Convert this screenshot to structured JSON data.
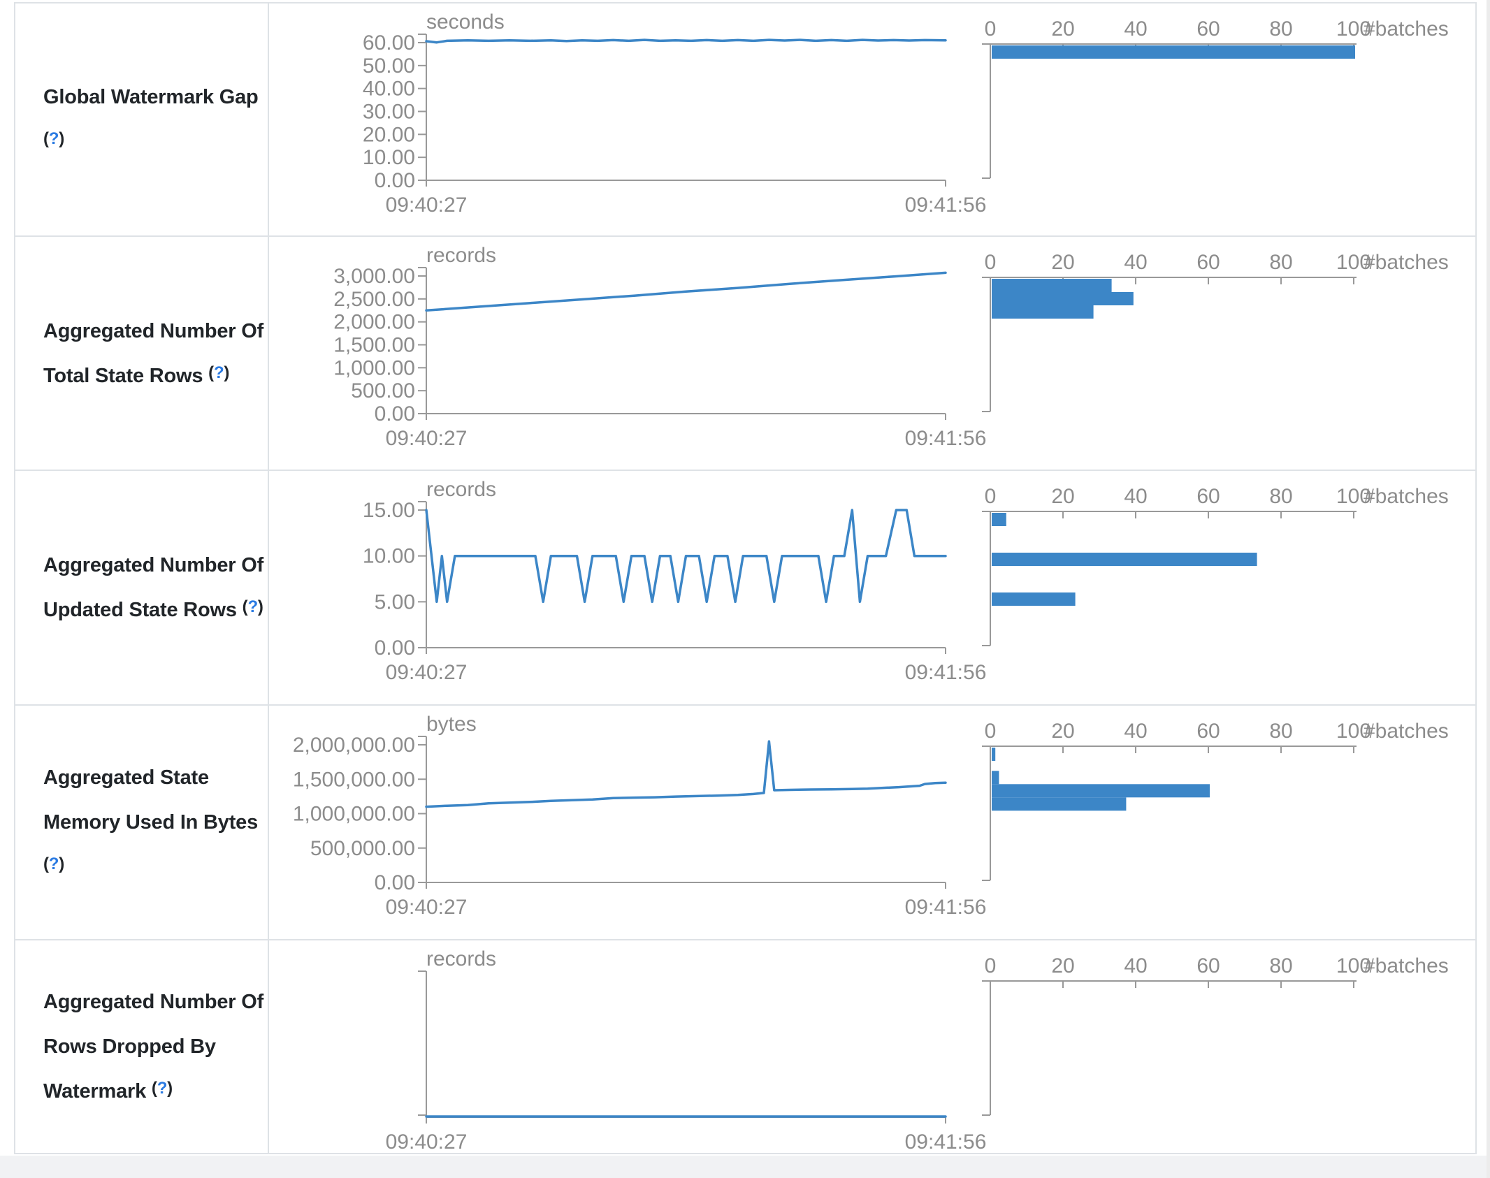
{
  "colors": {
    "accent_blue": "#3c86c7",
    "axis_gray": "#999999",
    "tick_text_gray": "#8c8c8c",
    "label_dark": "#212529",
    "help_blue": "#2a7ae2",
    "border_gray": "#dee2e6"
  },
  "histogram_header": {
    "tick_labels": [
      "0",
      "20",
      "40",
      "60",
      "80",
      "100"
    ],
    "tick_values": [
      0,
      20,
      40,
      60,
      80,
      100
    ],
    "axis_label": "#batches"
  },
  "time_axis": {
    "start": "09:40:27",
    "end": "09:41:56"
  },
  "help_marker": {
    "open": "(",
    "q": "?",
    "close": ")"
  },
  "rows": [
    {
      "name": "global-watermark-gap",
      "label_lines": [
        "Global Watermark Gap"
      ],
      "help_own_line": true,
      "chart_data": {
        "type": "line",
        "title": "Global Watermark Gap",
        "unit": "seconds",
        "ymax": 60,
        "y_tick_labels": [
          "60.00",
          "50.00",
          "40.00",
          "30.00",
          "20.00",
          "10.00",
          "0.00"
        ],
        "x_start": "09:40:27",
        "x_end": "09:41:56",
        "points": [
          [
            0,
            60.6
          ],
          [
            2,
            60.1
          ],
          [
            4,
            60.8
          ],
          [
            8,
            61
          ],
          [
            12,
            60.8
          ],
          [
            16,
            61
          ],
          [
            20,
            60.8
          ],
          [
            24,
            61
          ],
          [
            27,
            60.7
          ],
          [
            30,
            61
          ],
          [
            33,
            60.8
          ],
          [
            36,
            61.1
          ],
          [
            39,
            60.8
          ],
          [
            42,
            61.2
          ],
          [
            45,
            60.8
          ],
          [
            48,
            61
          ],
          [
            51,
            60.8
          ],
          [
            54,
            61.1
          ],
          [
            57,
            60.8
          ],
          [
            60,
            61.1
          ],
          [
            63,
            60.8
          ],
          [
            66,
            61.2
          ],
          [
            69,
            60.9
          ],
          [
            72,
            61.2
          ],
          [
            75,
            60.8
          ],
          [
            78,
            61.1
          ],
          [
            81,
            60.8
          ],
          [
            84,
            61.2
          ],
          [
            87,
            60.9
          ],
          [
            90,
            61.1
          ],
          [
            93,
            60.9
          ],
          [
            96,
            61.1
          ],
          [
            100,
            61
          ]
        ],
        "histogram_bars": [
          {
            "value": 60,
            "count": 100
          }
        ]
      }
    },
    {
      "name": "aggregated-number-of-total-state-rows",
      "label_lines": [
        "Aggregated Number Of",
        "Total State Rows"
      ],
      "help_own_line": false,
      "chart_data": {
        "type": "line",
        "title": "Aggregated Number Of Total State Rows",
        "unit": "records",
        "ymax": 3000,
        "y_tick_labels": [
          "3,000.00",
          "2,500.00",
          "2,000.00",
          "1,500.00",
          "1,000.00",
          "500.00",
          "0.00"
        ],
        "x_start": "09:40:27",
        "x_end": "09:41:56",
        "points": [
          [
            0,
            2250
          ],
          [
            10,
            2330
          ],
          [
            20,
            2410
          ],
          [
            30,
            2490
          ],
          [
            40,
            2570
          ],
          [
            50,
            2660
          ],
          [
            60,
            2740
          ],
          [
            70,
            2830
          ],
          [
            80,
            2910
          ],
          [
            90,
            2990
          ],
          [
            100,
            3070
          ]
        ],
        "histogram_bars": [
          {
            "value": 3000,
            "count": 33
          },
          {
            "value": 2700,
            "count": 39
          },
          {
            "value": 2400,
            "count": 28
          }
        ]
      }
    },
    {
      "name": "aggregated-number-of-updated-state-rows",
      "label_lines": [
        "Aggregated Number Of",
        "Updated State Rows"
      ],
      "help_own_line": false,
      "chart_data": {
        "type": "line",
        "title": "Aggregated Number Of Updated State Rows",
        "unit": "records",
        "ymax": 15,
        "y_tick_labels": [
          "15.00",
          "10.00",
          "5.00",
          "0.00"
        ],
        "x_start": "09:40:27",
        "x_end": "09:41:56",
        "points": [
          [
            0,
            15
          ],
          [
            2,
            5
          ],
          [
            3,
            10
          ],
          [
            4,
            5
          ],
          [
            5.5,
            10
          ],
          [
            21,
            10
          ],
          [
            22.5,
            5
          ],
          [
            24,
            10
          ],
          [
            29,
            10
          ],
          [
            30.5,
            5
          ],
          [
            32,
            10
          ],
          [
            36.5,
            10
          ],
          [
            38,
            5
          ],
          [
            39.5,
            10
          ],
          [
            42,
            10
          ],
          [
            43.5,
            5
          ],
          [
            45,
            10
          ],
          [
            47,
            10
          ],
          [
            48.5,
            5
          ],
          [
            50,
            10
          ],
          [
            52.5,
            10
          ],
          [
            54,
            5
          ],
          [
            55.5,
            10
          ],
          [
            58,
            10
          ],
          [
            59.5,
            5
          ],
          [
            61,
            10
          ],
          [
            65.5,
            10
          ],
          [
            67,
            5
          ],
          [
            68.5,
            10
          ],
          [
            75.5,
            10
          ],
          [
            77,
            5
          ],
          [
            78.5,
            10
          ],
          [
            80.5,
            10
          ],
          [
            82,
            15
          ],
          [
            83.5,
            5
          ],
          [
            85,
            10
          ],
          [
            88.5,
            10
          ],
          [
            90.5,
            15
          ],
          [
            92.5,
            15
          ],
          [
            94,
            10
          ],
          [
            100,
            10
          ]
        ],
        "histogram_bars": [
          {
            "value": 15,
            "count": 4
          },
          {
            "value": 10.5,
            "count": 73
          },
          {
            "value": 6,
            "count": 23
          }
        ]
      }
    },
    {
      "name": "aggregated-state-memory-used-in-bytes",
      "label_lines": [
        "Aggregated State",
        "Memory Used In Bytes"
      ],
      "help_own_line": true,
      "chart_data": {
        "type": "line",
        "title": "Aggregated State Memory Used In Bytes",
        "unit": "bytes",
        "ymax": 2000000,
        "y_tick_labels": [
          "2,000,000.00",
          "1,500,000.00",
          "1,000,000.00",
          "500,000.00",
          "0.00"
        ],
        "x_start": "09:40:27",
        "x_end": "09:41:56",
        "points": [
          [
            0,
            1100000
          ],
          [
            4,
            1115000
          ],
          [
            8,
            1125000
          ],
          [
            12,
            1150000
          ],
          [
            16,
            1160000
          ],
          [
            20,
            1170000
          ],
          [
            24,
            1185000
          ],
          [
            28,
            1195000
          ],
          [
            32,
            1205000
          ],
          [
            36,
            1225000
          ],
          [
            40,
            1232000
          ],
          [
            44,
            1238000
          ],
          [
            48,
            1248000
          ],
          [
            52,
            1255000
          ],
          [
            56,
            1262000
          ],
          [
            60,
            1272000
          ],
          [
            63,
            1285000
          ],
          [
            65,
            1300000
          ],
          [
            66,
            2050000
          ],
          [
            67,
            1340000
          ],
          [
            70,
            1345000
          ],
          [
            74,
            1350000
          ],
          [
            78,
            1352000
          ],
          [
            82,
            1358000
          ],
          [
            85,
            1362000
          ],
          [
            88,
            1375000
          ],
          [
            91,
            1385000
          ],
          [
            93,
            1395000
          ],
          [
            95,
            1405000
          ],
          [
            96,
            1430000
          ],
          [
            98,
            1445000
          ],
          [
            100,
            1450000
          ]
        ],
        "histogram_bars": [
          {
            "value": 2000000,
            "count": 1
          },
          {
            "value": 1650000,
            "count": 2
          },
          {
            "value": 1450000,
            "count": 60
          },
          {
            "value": 1250000,
            "count": 37
          }
        ]
      }
    },
    {
      "name": "aggregated-number-of-rows-dropped-by-watermark",
      "label_lines": [
        "Aggregated Number Of",
        "Rows Dropped By",
        "Watermark"
      ],
      "help_own_line": false,
      "chart_data": {
        "type": "line",
        "title": "Aggregated Number Of Rows Dropped By Watermark",
        "unit": "records",
        "ymax": null,
        "y_tick_labels": [],
        "x_start": "09:40:27",
        "x_end": "09:41:56",
        "points": [
          [
            0,
            0
          ],
          [
            100,
            0
          ]
        ],
        "histogram_bars": []
      }
    }
  ]
}
